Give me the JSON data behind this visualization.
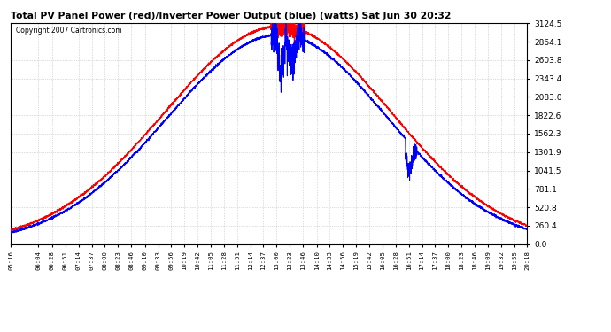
{
  "title": "Total PV Panel Power (red)/Inverter Power Output (blue) (watts) Sat Jun 30 20:32",
  "copyright": "Copyright 2007 Cartronics.com",
  "background_color": "#ffffff",
  "plot_bg_color": "#ffffff",
  "grid_color": "#bbbbbb",
  "red_color": "#ff0000",
  "blue_color": "#0000ff",
  "y_ticks": [
    0.0,
    260.4,
    520.8,
    781.1,
    1041.5,
    1301.9,
    1562.3,
    1822.6,
    2083.0,
    2343.4,
    2603.8,
    2864.1,
    3124.5
  ],
  "x_labels": [
    "05:16",
    "06:04",
    "06:28",
    "06:51",
    "07:14",
    "07:37",
    "08:00",
    "08:23",
    "08:46",
    "09:10",
    "09:33",
    "09:56",
    "10:19",
    "10:42",
    "11:05",
    "11:28",
    "11:51",
    "12:14",
    "12:37",
    "13:00",
    "13:23",
    "13:46",
    "14:10",
    "14:33",
    "14:56",
    "15:19",
    "15:42",
    "16:05",
    "16:28",
    "16:51",
    "17:14",
    "17:37",
    "18:00",
    "18:23",
    "18:46",
    "19:09",
    "19:32",
    "19:55",
    "20:18"
  ],
  "ymax": 3124.5,
  "ymin": 0.0
}
